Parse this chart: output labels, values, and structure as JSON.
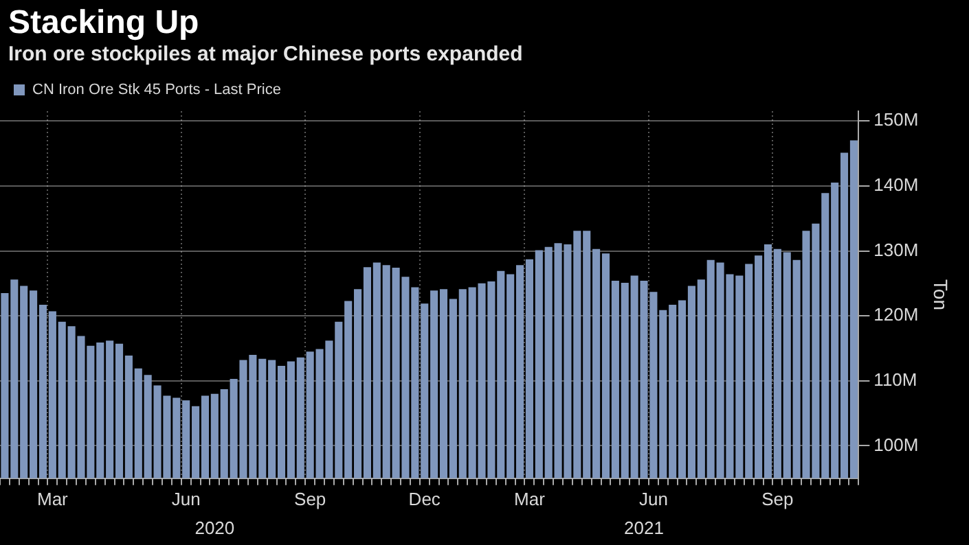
{
  "chart_data": {
    "type": "bar",
    "title": "Stacking Up",
    "subtitle": "Iron ore stockpiles at major Chinese ports expanded",
    "ylabel": "Ton",
    "categories": [
      null,
      null,
      null,
      null,
      null,
      "Mar",
      null,
      null,
      null,
      null,
      null,
      null,
      null,
      null,
      null,
      null,
      null,
      null,
      null,
      "Jun",
      null,
      null,
      null,
      null,
      null,
      null,
      null,
      null,
      null,
      null,
      null,
      null,
      "Sep",
      null,
      null,
      null,
      null,
      null,
      null,
      null,
      null,
      null,
      null,
      null,
      "Dec",
      null,
      null,
      null,
      null,
      null,
      null,
      null,
      null,
      null,
      null,
      "Mar",
      null,
      null,
      null,
      null,
      null,
      null,
      null,
      null,
      null,
      null,
      null,
      null,
      "Jun",
      null,
      null,
      null,
      null,
      null,
      null,
      null,
      null,
      null,
      null,
      null,
      null,
      "Sep",
      null,
      null,
      null,
      null,
      null,
      null,
      null,
      null
    ],
    "series": [
      {
        "name": "CN Iron Ore Stk 45 Ports - Last Price",
        "color": "#8097bd",
        "values": [
          123.5,
          125.6,
          124.6,
          123.9,
          121.7,
          120.7,
          119.1,
          118.4,
          116.9,
          115.4,
          115.9,
          116.2,
          115.7,
          113.9,
          111.9,
          110.9,
          109.3,
          107.7,
          107.4,
          107.0,
          106.1,
          107.7,
          108.0,
          108.7,
          110.3,
          113.2,
          114.0,
          113.4,
          113.2,
          112.3,
          113.0,
          113.6,
          114.5,
          114.9,
          116.2,
          119.1,
          122.3,
          124.1,
          127.5,
          128.2,
          127.8,
          127.4,
          126.0,
          124.4,
          121.9,
          123.9,
          124.1,
          122.6,
          124.1,
          124.4,
          125.0,
          125.3,
          126.9,
          126.4,
          127.8,
          128.7,
          130.1,
          130.6,
          131.2,
          131.0,
          133.1,
          133.1,
          130.3,
          129.6,
          125.4,
          125.1,
          126.2,
          125.4,
          123.7,
          120.9,
          121.7,
          122.4,
          124.6,
          125.6,
          128.6,
          128.2,
          126.4,
          126.2,
          128.0,
          129.3,
          131.0,
          130.3,
          129.8,
          128.6,
          133.1,
          134.2,
          138.9,
          140.5,
          145.1,
          147.0
        ]
      }
    ],
    "annotations": [
      "2020",
      "2021"
    ],
    "ylim": [
      95,
      151.5
    ],
    "yticks": [
      {
        "value": 100,
        "label": "100M"
      },
      {
        "value": 110,
        "label": "110M"
      },
      {
        "value": 120,
        "label": "120M"
      },
      {
        "value": 130,
        "label": "130M"
      },
      {
        "value": 140,
        "label": "140M"
      },
      {
        "value": 150,
        "label": "150M"
      }
    ],
    "grid": true,
    "legend": "top left"
  }
}
